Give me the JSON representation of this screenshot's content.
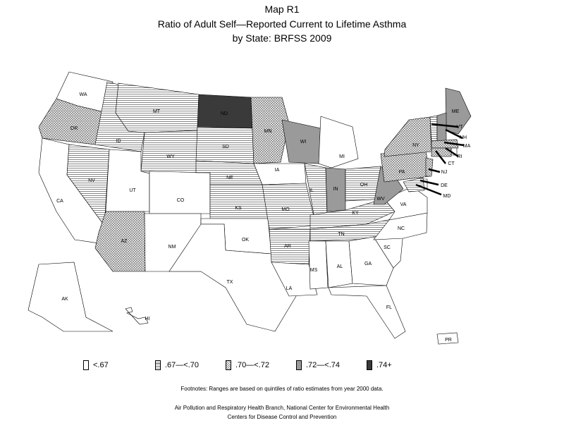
{
  "title": {
    "line1": "Map R1",
    "line2": "Ratio of Adult Self—Reported Current to Lifetime Asthma",
    "line3": "by State: BRFSS 2009"
  },
  "colors": {
    "c1": "#ffffff",
    "c2": "hatch-horizontal",
    "c3": "crosshatch",
    "c4": "#9a9a9a",
    "c5": "#3a3a3a"
  },
  "legend": [
    {
      "key": "c1",
      "label": "<.67"
    },
    {
      "key": "c2",
      "label": ".67—<.70"
    },
    {
      "key": "c3",
      "label": ".70—<.72"
    },
    {
      "key": "c4",
      "label": ".72—<.74"
    },
    {
      "key": "c5",
      "label": ".74+"
    }
  ],
  "states": [
    {
      "abbr": "WA",
      "class": "c1"
    },
    {
      "abbr": "OR",
      "class": "c3"
    },
    {
      "abbr": "CA",
      "class": "c1"
    },
    {
      "abbr": "ID",
      "class": "c2"
    },
    {
      "abbr": "NV",
      "class": "c2"
    },
    {
      "abbr": "MT",
      "class": "c2"
    },
    {
      "abbr": "WY",
      "class": "c2"
    },
    {
      "abbr": "UT",
      "class": "c1"
    },
    {
      "abbr": "AZ",
      "class": "c3"
    },
    {
      "abbr": "CO",
      "class": "c1"
    },
    {
      "abbr": "NM",
      "class": "c1"
    },
    {
      "abbr": "ND",
      "class": "c5"
    },
    {
      "abbr": "SD",
      "class": "c2"
    },
    {
      "abbr": "NE",
      "class": "c2"
    },
    {
      "abbr": "KS",
      "class": "c2"
    },
    {
      "abbr": "OK",
      "class": "c1"
    },
    {
      "abbr": "TX",
      "class": "c1"
    },
    {
      "abbr": "MN",
      "class": "c3"
    },
    {
      "abbr": "IA",
      "class": "c1"
    },
    {
      "abbr": "MO",
      "class": "c2"
    },
    {
      "abbr": "AR",
      "class": "c2"
    },
    {
      "abbr": "LA",
      "class": "c1"
    },
    {
      "abbr": "WI",
      "class": "c4"
    },
    {
      "abbr": "IL",
      "class": "c2"
    },
    {
      "abbr": "MI",
      "class": "c1"
    },
    {
      "abbr": "IN",
      "class": "c4"
    },
    {
      "abbr": "OH",
      "class": "c2"
    },
    {
      "abbr": "KY",
      "class": "c2"
    },
    {
      "abbr": "TN",
      "class": "c2"
    },
    {
      "abbr": "MS",
      "class": "c1"
    },
    {
      "abbr": "AL",
      "class": "c1"
    },
    {
      "abbr": "GA",
      "class": "c1"
    },
    {
      "abbr": "FL",
      "class": "c1"
    },
    {
      "abbr": "SC",
      "class": "c1"
    },
    {
      "abbr": "NC",
      "class": "c1"
    },
    {
      "abbr": "VA",
      "class": "c1"
    },
    {
      "abbr": "WV",
      "class": "c4"
    },
    {
      "abbr": "PA",
      "class": "c3"
    },
    {
      "abbr": "NY",
      "class": "c3"
    },
    {
      "abbr": "ME",
      "class": "c4"
    },
    {
      "abbr": "VT",
      "class": "c2"
    },
    {
      "abbr": "NH",
      "class": "c4"
    },
    {
      "abbr": "MA",
      "class": "c3"
    },
    {
      "abbr": "RI",
      "class": "c1"
    },
    {
      "abbr": "CT",
      "class": "c3"
    },
    {
      "abbr": "NJ",
      "class": "c3"
    },
    {
      "abbr": "DE",
      "class": "c1"
    },
    {
      "abbr": "MD",
      "class": "c2"
    },
    {
      "abbr": "AK",
      "class": "c1"
    },
    {
      "abbr": "HI",
      "class": "c1"
    },
    {
      "abbr": "PR",
      "class": "c1"
    }
  ],
  "footnote": "Footnotes: Ranges are based on quintiles of ratio estimates from year 2000 data.",
  "source_line1": "Air Pollution and Respiratory Health Branch, National Center for Environmental Health",
  "source_line2": "Centers for Disease Control and Prevention"
}
